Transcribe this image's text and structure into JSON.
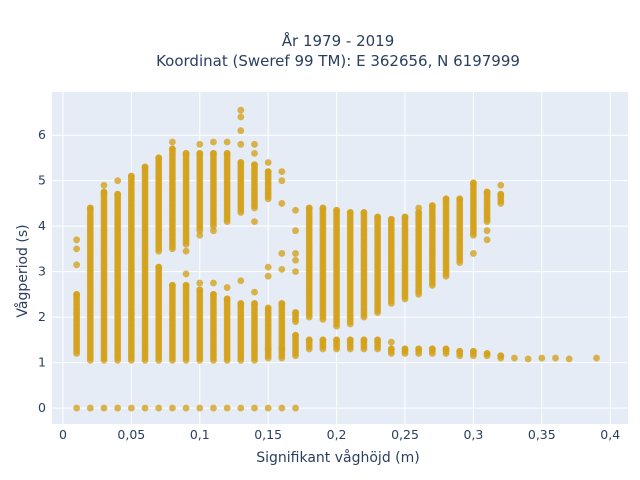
{
  "chart_data": {
    "type": "scatter",
    "title_line1": "År 1979 - 2019",
    "title_line2": "Koordinat (Sweref 99 TM): E 362656, N 6197999",
    "xlabel": "Signifikant våghöjd (m)",
    "ylabel": "Vågperiod (s)",
    "xlim": [
      -0.008,
      0.413
    ],
    "ylim": [
      -0.35,
      6.95
    ],
    "x_ticks": [
      0,
      0.05,
      0.1,
      0.15,
      0.2,
      0.25,
      0.3,
      0.35,
      0.4
    ],
    "x_tick_labels": [
      "0",
      "0,05",
      "0,1",
      "0,15",
      "0,2",
      "0,25",
      "0,3",
      "0,35",
      "0,4"
    ],
    "y_ticks": [
      0,
      1,
      2,
      3,
      4,
      5,
      6
    ],
    "y_tick_labels": [
      "0",
      "1",
      "2",
      "3",
      "4",
      "5",
      "6"
    ],
    "grid": true,
    "marker_color": "#d4a21a",
    "plot_bg": "#e5ecf6",
    "series": [
      {
        "columns": [
          {
            "x": 0.01,
            "segments": [
              [
                1.2,
                2.5
              ]
            ],
            "isolated": [
              0,
              3.15,
              3.5,
              3.7
            ]
          },
          {
            "x": 0.02,
            "segments": [
              [
                1.05,
                4.4
              ]
            ],
            "isolated": [
              0
            ]
          },
          {
            "x": 0.03,
            "segments": [
              [
                1.05,
                4.75
              ]
            ],
            "isolated": [
              0,
              4.9
            ]
          },
          {
            "x": 0.04,
            "segments": [
              [
                1.05,
                4.7
              ]
            ],
            "isolated": [
              0,
              5.0
            ]
          },
          {
            "x": 0.05,
            "segments": [
              [
                1.05,
                5.1
              ]
            ],
            "isolated": [
              0
            ]
          },
          {
            "x": 0.06,
            "segments": [
              [
                1.05,
                5.3
              ]
            ],
            "isolated": [
              0
            ]
          },
          {
            "x": 0.07,
            "segments": [
              [
                1.05,
                3.1
              ],
              [
                3.45,
                5.5
              ]
            ],
            "isolated": [
              0
            ]
          },
          {
            "x": 0.08,
            "segments": [
              [
                1.05,
                2.7
              ],
              [
                3.5,
                5.7
              ]
            ],
            "isolated": [
              0,
              5.85
            ]
          },
          {
            "x": 0.09,
            "segments": [
              [
                1.05,
                2.7
              ],
              [
                3.6,
                5.6
              ]
            ],
            "isolated": [
              0,
              2.95,
              3.45
            ]
          },
          {
            "x": 0.1,
            "segments": [
              [
                1.05,
                2.6
              ],
              [
                3.9,
                5.6
              ]
            ],
            "isolated": [
              0,
              2.75,
              3.8,
              5.8
            ]
          },
          {
            "x": 0.11,
            "segments": [
              [
                1.05,
                2.5
              ],
              [
                4.0,
                5.6
              ]
            ],
            "isolated": [
              0,
              2.75,
              3.9,
              5.85
            ]
          },
          {
            "x": 0.12,
            "segments": [
              [
                1.05,
                2.4
              ],
              [
                4.1,
                5.6
              ]
            ],
            "isolated": [
              0,
              2.65,
              5.85
            ]
          },
          {
            "x": 0.13,
            "segments": [
              [
                1.05,
                2.3
              ],
              [
                4.3,
                5.4
              ]
            ],
            "isolated": [
              0,
              2.8,
              6.4,
              6.55,
              6.1,
              5.8
            ]
          },
          {
            "x": 0.14,
            "segments": [
              [
                1.05,
                2.3
              ],
              [
                4.4,
                5.35
              ]
            ],
            "isolated": [
              0,
              2.55,
              4.1,
              5.6,
              5.8
            ]
          },
          {
            "x": 0.15,
            "segments": [
              [
                1.1,
                2.2
              ],
              [
                4.6,
                5.2
              ]
            ],
            "isolated": [
              0,
              1.3,
              2.9,
              3.1,
              5.4
            ]
          },
          {
            "x": 0.16,
            "segments": [
              [
                1.1,
                2.3
              ]
            ],
            "isolated": [
              0,
              1.3,
              3.05,
              3.4,
              4.5,
              5.0,
              5.2
            ]
          },
          {
            "x": 0.17,
            "segments": [
              [
                1.15,
                1.6
              ],
              [
                1.9,
                2.1
              ]
            ],
            "isolated": [
              0,
              3.0,
              3.25,
              3.4,
              3.9,
              4.35
            ]
          },
          {
            "x": 0.18,
            "segments": [
              [
                1.3,
                1.5
              ],
              [
                2.0,
                4.4
              ]
            ],
            "isolated": []
          },
          {
            "x": 0.19,
            "segments": [
              [
                1.3,
                1.5
              ],
              [
                1.95,
                4.4
              ]
            ],
            "isolated": []
          },
          {
            "x": 0.2,
            "segments": [
              [
                1.3,
                1.5
              ],
              [
                1.8,
                4.35
              ]
            ],
            "isolated": []
          },
          {
            "x": 0.21,
            "segments": [
              [
                1.3,
                1.5
              ],
              [
                1.85,
                4.3
              ]
            ],
            "isolated": []
          },
          {
            "x": 0.22,
            "segments": [
              [
                1.3,
                1.5
              ],
              [
                2.0,
                4.3
              ]
            ],
            "isolated": []
          },
          {
            "x": 0.23,
            "segments": [
              [
                1.3,
                1.5
              ],
              [
                2.1,
                4.2
              ]
            ],
            "isolated": []
          },
          {
            "x": 0.24,
            "segments": [
              [
                1.2,
                1.3
              ],
              [
                2.3,
                4.15
              ]
            ],
            "isolated": [
              1.45
            ]
          },
          {
            "x": 0.25,
            "segments": [
              [
                1.2,
                1.3
              ],
              [
                2.4,
                4.2
              ]
            ],
            "isolated": []
          },
          {
            "x": 0.26,
            "segments": [
              [
                1.2,
                1.3
              ],
              [
                2.5,
                4.3
              ]
            ],
            "isolated": [
              4.4
            ]
          },
          {
            "x": 0.27,
            "segments": [
              [
                1.2,
                1.3
              ],
              [
                2.7,
                4.45
              ]
            ],
            "isolated": []
          },
          {
            "x": 0.28,
            "segments": [
              [
                1.2,
                1.3
              ],
              [
                2.9,
                4.6
              ]
            ],
            "isolated": []
          },
          {
            "x": 0.29,
            "segments": [
              [
                1.15,
                1.25
              ],
              [
                3.2,
                4.6
              ]
            ],
            "isolated": []
          },
          {
            "x": 0.3,
            "segments": [
              [
                1.15,
                1.25
              ],
              [
                3.8,
                4.95
              ]
            ],
            "isolated": [
              3.4
            ]
          },
          {
            "x": 0.31,
            "segments": [
              [
                1.15,
                1.2
              ],
              [
                4.1,
                4.75
              ]
            ],
            "isolated": [
              3.7,
              3.9
            ]
          },
          {
            "x": 0.32,
            "segments": [
              [
                1.1,
                1.15
              ],
              [
                4.5,
                4.7
              ]
            ],
            "isolated": [
              4.9
            ]
          },
          {
            "x": 0.33,
            "segments": [],
            "isolated": [
              1.1
            ]
          },
          {
            "x": 0.34,
            "segments": [],
            "isolated": [
              1.08
            ]
          },
          {
            "x": 0.35,
            "segments": [],
            "isolated": [
              1.1
            ]
          },
          {
            "x": 0.36,
            "segments": [],
            "isolated": [
              1.1
            ]
          },
          {
            "x": 0.37,
            "segments": [],
            "isolated": [
              1.08
            ]
          },
          {
            "x": 0.39,
            "segments": [],
            "isolated": [
              1.1
            ]
          }
        ],
        "segment_step": 0.05
      }
    ]
  }
}
